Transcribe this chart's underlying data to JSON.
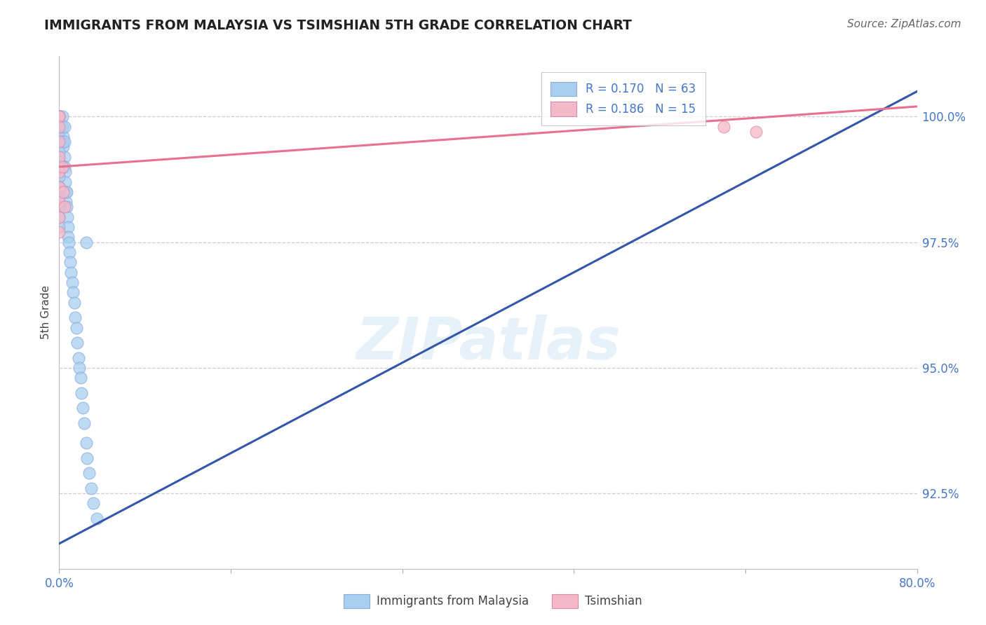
{
  "title": "IMMIGRANTS FROM MALAYSIA VS TSIMSHIAN 5TH GRADE CORRELATION CHART",
  "source": "Source: ZipAtlas.com",
  "ylabel": "5th Grade",
  "xlim": [
    0.0,
    80.0
  ],
  "ylim": [
    91.0,
    101.2
  ],
  "yticks": [
    92.5,
    95.0,
    97.5,
    100.0
  ],
  "ytick_labels": [
    "92.5%",
    "95.0%",
    "97.5%",
    "100.0%"
  ],
  "xticks": [
    0.0,
    16.0,
    32.0,
    48.0,
    64.0,
    80.0
  ],
  "xtick_labels": [
    "0.0%",
    "",
    "",
    "",
    "",
    "80.0%"
  ],
  "blue_R": 0.17,
  "blue_N": 63,
  "pink_R": 0.186,
  "pink_N": 15,
  "blue_color": "#A8CFF0",
  "pink_color": "#F5B8C8",
  "blue_line_color": "#3355AA",
  "pink_line_color": "#E87090",
  "legend_label_blue": "Immigrants from Malaysia",
  "legend_label_pink": "Tsimshian",
  "blue_scatter_x": [
    0.0,
    0.0,
    0.0,
    0.0,
    0.0,
    0.0,
    0.0,
    0.0,
    0.0,
    0.0,
    0.0,
    0.0,
    0.0,
    0.3,
    0.3,
    0.35,
    0.35,
    0.4,
    0.5,
    0.5,
    0.5,
    0.5,
    0.55,
    0.55,
    0.6,
    0.65,
    0.7,
    0.7,
    0.75,
    0.8,
    0.85,
    0.9,
    0.95,
    1.0,
    1.1,
    1.2,
    1.3,
    1.4,
    1.5,
    1.6,
    1.7,
    1.8,
    1.9,
    2.0,
    2.1,
    2.2,
    2.3,
    2.5,
    2.6,
    2.8,
    3.0,
    3.2,
    3.5,
    0.0,
    0.0,
    0.0,
    0.0,
    0.0,
    0.0,
    0.0,
    0.0,
    0.0,
    2.5
  ],
  "blue_scatter_y": [
    100.0,
    100.0,
    100.0,
    100.0,
    100.0,
    100.0,
    100.0,
    100.0,
    100.0,
    99.8,
    99.7,
    99.6,
    99.5,
    100.0,
    99.8,
    99.6,
    99.4,
    99.5,
    99.8,
    99.5,
    99.2,
    99.0,
    98.9,
    98.7,
    98.5,
    98.3,
    98.5,
    98.2,
    98.0,
    97.8,
    97.6,
    97.5,
    97.3,
    97.1,
    96.9,
    96.7,
    96.5,
    96.3,
    96.0,
    95.8,
    95.5,
    95.2,
    95.0,
    94.8,
    94.5,
    94.2,
    93.9,
    93.5,
    93.2,
    92.9,
    92.6,
    92.3,
    92.0,
    99.3,
    99.1,
    99.0,
    98.8,
    98.6,
    98.4,
    98.2,
    98.0,
    97.8,
    97.5
  ],
  "pink_scatter_x": [
    0.0,
    0.0,
    0.0,
    0.0,
    0.0,
    0.0,
    0.0,
    0.0,
    0.0,
    0.0,
    0.3,
    0.35,
    0.5,
    62.0,
    65.0
  ],
  "pink_scatter_y": [
    100.0,
    100.0,
    99.8,
    99.5,
    99.2,
    98.9,
    98.6,
    98.3,
    98.0,
    97.7,
    99.0,
    98.5,
    98.2,
    99.8,
    99.7
  ],
  "blue_line_x0": 0.0,
  "blue_line_x1": 80.0,
  "blue_line_y0": 91.5,
  "blue_line_y1": 100.5,
  "pink_line_x0": 0.0,
  "pink_line_x1": 80.0,
  "pink_line_y0": 99.0,
  "pink_line_y1": 100.2
}
